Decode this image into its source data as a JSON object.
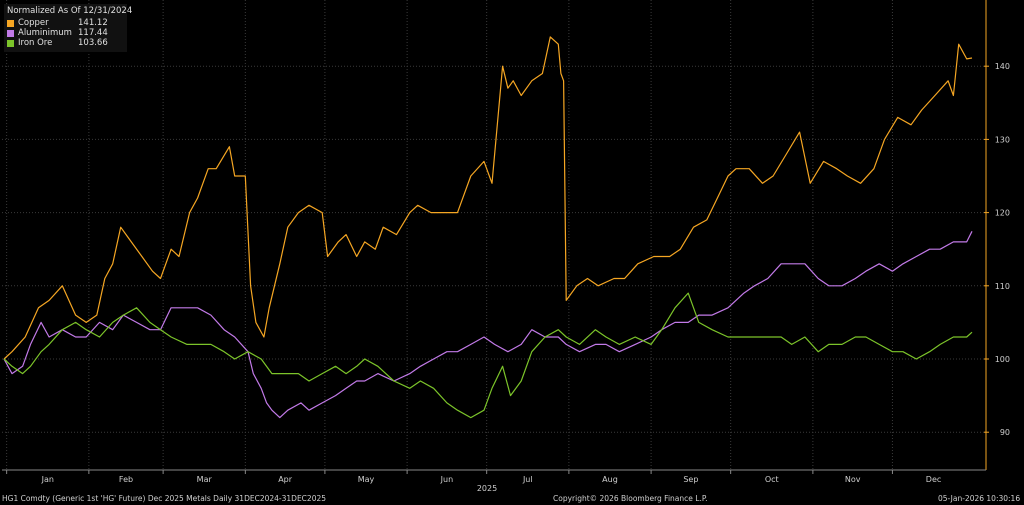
{
  "legend": {
    "title": "Normalized As Of 12/31/2024",
    "items": [
      {
        "name": "Copper",
        "value": "141.12",
        "color": "#f5a623"
      },
      {
        "name": "Aluminimum",
        "value": "117.44",
        "color": "#c27ae8"
      },
      {
        "name": "Iron Ore",
        "value": "103.66",
        "color": "#7cc42a"
      }
    ]
  },
  "footer": {
    "left": "HG1 Comdty (Generic 1st 'HG' Future) Dec 2025 Metals Daily 31DEC2024-31DEC2025",
    "center": "Copyright© 2026 Bloomberg Finance L.P.",
    "right": "05-Jan-2026 10:30:16"
  },
  "chart_data": {
    "type": "line",
    "x_tick_labels": [
      "Jan",
      "Feb",
      "Mar",
      "Apr",
      "May",
      "Jun",
      "Jul",
      "Aug",
      "Sep",
      "Oct",
      "Nov",
      "Dec"
    ],
    "x_year_label": "2025",
    "y_ticks": [
      90,
      100,
      110,
      120,
      130,
      140
    ],
    "ylim": [
      85,
      146
    ],
    "grid": true,
    "legend_position": "top-left",
    "series": [
      {
        "name": "Copper",
        "color": "#f5a623",
        "points": [
          [
            "2024-12-31",
            100
          ],
          [
            "2025-01-03",
            101
          ],
          [
            "2025-01-08",
            103
          ],
          [
            "2025-01-13",
            107
          ],
          [
            "2025-01-17",
            108
          ],
          [
            "2025-01-22",
            110
          ],
          [
            "2025-01-27",
            106
          ],
          [
            "2025-01-31",
            105
          ],
          [
            "2025-02-04",
            106
          ],
          [
            "2025-02-07",
            111
          ],
          [
            "2025-02-10",
            113
          ],
          [
            "2025-02-13",
            118
          ],
          [
            "2025-02-17",
            116
          ],
          [
            "2025-02-21",
            114
          ],
          [
            "2025-02-25",
            112
          ],
          [
            "2025-02-28",
            111
          ],
          [
            "2025-03-04",
            115
          ],
          [
            "2025-03-07",
            114
          ],
          [
            "2025-03-11",
            120
          ],
          [
            "2025-03-14",
            122
          ],
          [
            "2025-03-18",
            126
          ],
          [
            "2025-03-21",
            126
          ],
          [
            "2025-03-26",
            129
          ],
          [
            "2025-03-28",
            125
          ],
          [
            "2025-04-01",
            125
          ],
          [
            "2025-04-03",
            110
          ],
          [
            "2025-04-05",
            105
          ],
          [
            "2025-04-08",
            103
          ],
          [
            "2025-04-10",
            107
          ],
          [
            "2025-04-14",
            113
          ],
          [
            "2025-04-17",
            118
          ],
          [
            "2025-04-21",
            120
          ],
          [
            "2025-04-25",
            121
          ],
          [
            "2025-04-30",
            120
          ],
          [
            "2025-05-02",
            114
          ],
          [
            "2025-05-06",
            116
          ],
          [
            "2025-05-09",
            117
          ],
          [
            "2025-05-13",
            114
          ],
          [
            "2025-05-16",
            116
          ],
          [
            "2025-05-20",
            115
          ],
          [
            "2025-05-23",
            118
          ],
          [
            "2025-05-28",
            117
          ],
          [
            "2025-06-02",
            120
          ],
          [
            "2025-06-05",
            121
          ],
          [
            "2025-06-10",
            120
          ],
          [
            "2025-06-13",
            120
          ],
          [
            "2025-06-17",
            120
          ],
          [
            "2025-06-20",
            120
          ],
          [
            "2025-06-25",
            125
          ],
          [
            "2025-06-30",
            127
          ],
          [
            "2025-07-03",
            124
          ],
          [
            "2025-07-07",
            140
          ],
          [
            "2025-07-09",
            137
          ],
          [
            "2025-07-11",
            138
          ],
          [
            "2025-07-14",
            136
          ],
          [
            "2025-07-18",
            138
          ],
          [
            "2025-07-22",
            139
          ],
          [
            "2025-07-25",
            144
          ],
          [
            "2025-07-28",
            143
          ],
          [
            "2025-07-29",
            139
          ],
          [
            "2025-07-30",
            138
          ],
          [
            "2025-07-31",
            108
          ],
          [
            "2025-08-04",
            110
          ],
          [
            "2025-08-08",
            111
          ],
          [
            "2025-08-12",
            110
          ],
          [
            "2025-08-18",
            111
          ],
          [
            "2025-08-22",
            111
          ],
          [
            "2025-08-27",
            113
          ],
          [
            "2025-09-02",
            114
          ],
          [
            "2025-09-08",
            114
          ],
          [
            "2025-09-12",
            115
          ],
          [
            "2025-09-17",
            118
          ],
          [
            "2025-09-22",
            119
          ],
          [
            "2025-09-26",
            122
          ],
          [
            "2025-09-30",
            125
          ],
          [
            "2025-10-03",
            126
          ],
          [
            "2025-10-08",
            126
          ],
          [
            "2025-10-13",
            124
          ],
          [
            "2025-10-17",
            125
          ],
          [
            "2025-10-22",
            128
          ],
          [
            "2025-10-27",
            131
          ],
          [
            "2025-10-31",
            124
          ],
          [
            "2025-11-05",
            127
          ],
          [
            "2025-11-10",
            126
          ],
          [
            "2025-11-14",
            125
          ],
          [
            "2025-11-19",
            124
          ],
          [
            "2025-11-24",
            126
          ],
          [
            "2025-11-28",
            130
          ],
          [
            "2025-12-03",
            133
          ],
          [
            "2025-12-08",
            132
          ],
          [
            "2025-12-12",
            134
          ],
          [
            "2025-12-17",
            136
          ],
          [
            "2025-12-22",
            138
          ],
          [
            "2025-12-24",
            136
          ],
          [
            "2025-12-26",
            143
          ],
          [
            "2025-12-29",
            141
          ],
          [
            "2025-12-31",
            141.12
          ]
        ]
      },
      {
        "name": "Aluminimum",
        "color": "#c27ae8",
        "points": [
          [
            "2024-12-31",
            100
          ],
          [
            "2025-01-03",
            98
          ],
          [
            "2025-01-07",
            99
          ],
          [
            "2025-01-10",
            102
          ],
          [
            "2025-01-14",
            105
          ],
          [
            "2025-01-17",
            103
          ],
          [
            "2025-01-22",
            104
          ],
          [
            "2025-01-27",
            103
          ],
          [
            "2025-01-31",
            103
          ],
          [
            "2025-02-05",
            105
          ],
          [
            "2025-02-10",
            104
          ],
          [
            "2025-02-14",
            106
          ],
          [
            "2025-02-19",
            105
          ],
          [
            "2025-02-24",
            104
          ],
          [
            "2025-02-28",
            104
          ],
          [
            "2025-03-04",
            107
          ],
          [
            "2025-03-10",
            107
          ],
          [
            "2025-03-14",
            107
          ],
          [
            "2025-03-19",
            106
          ],
          [
            "2025-03-24",
            104
          ],
          [
            "2025-03-28",
            103
          ],
          [
            "2025-04-02",
            101
          ],
          [
            "2025-04-04",
            98
          ],
          [
            "2025-04-07",
            96
          ],
          [
            "2025-04-09",
            94
          ],
          [
            "2025-04-11",
            93
          ],
          [
            "2025-04-14",
            92
          ],
          [
            "2025-04-17",
            93
          ],
          [
            "2025-04-22",
            94
          ],
          [
            "2025-04-25",
            93
          ],
          [
            "2025-04-30",
            94
          ],
          [
            "2025-05-05",
            95
          ],
          [
            "2025-05-09",
            96
          ],
          [
            "2025-05-13",
            97
          ],
          [
            "2025-05-16",
            97
          ],
          [
            "2025-05-21",
            98
          ],
          [
            "2025-05-27",
            97
          ],
          [
            "2025-06-02",
            98
          ],
          [
            "2025-06-06",
            99
          ],
          [
            "2025-06-11",
            100
          ],
          [
            "2025-06-16",
            101
          ],
          [
            "2025-06-20",
            101
          ],
          [
            "2025-06-25",
            102
          ],
          [
            "2025-06-30",
            103
          ],
          [
            "2025-07-04",
            102
          ],
          [
            "2025-07-09",
            101
          ],
          [
            "2025-07-14",
            102
          ],
          [
            "2025-07-18",
            104
          ],
          [
            "2025-07-23",
            103
          ],
          [
            "2025-07-28",
            103
          ],
          [
            "2025-07-31",
            102
          ],
          [
            "2025-08-05",
            101
          ],
          [
            "2025-08-11",
            102
          ],
          [
            "2025-08-15",
            102
          ],
          [
            "2025-08-20",
            101
          ],
          [
            "2025-08-26",
            102
          ],
          [
            "2025-09-01",
            103
          ],
          [
            "2025-09-05",
            104
          ],
          [
            "2025-09-10",
            105
          ],
          [
            "2025-09-15",
            105
          ],
          [
            "2025-09-19",
            106
          ],
          [
            "2025-09-24",
            106
          ],
          [
            "2025-09-30",
            107
          ],
          [
            "2025-10-06",
            109
          ],
          [
            "2025-10-10",
            110
          ],
          [
            "2025-10-15",
            111
          ],
          [
            "2025-10-20",
            113
          ],
          [
            "2025-10-24",
            113
          ],
          [
            "2025-10-29",
            113
          ],
          [
            "2025-11-03",
            111
          ],
          [
            "2025-11-07",
            110
          ],
          [
            "2025-11-12",
            110
          ],
          [
            "2025-11-17",
            111
          ],
          [
            "2025-11-21",
            112
          ],
          [
            "2025-11-26",
            113
          ],
          [
            "2025-12-01",
            112
          ],
          [
            "2025-12-05",
            113
          ],
          [
            "2025-12-10",
            114
          ],
          [
            "2025-12-15",
            115
          ],
          [
            "2025-12-19",
            115
          ],
          [
            "2025-12-24",
            116
          ],
          [
            "2025-12-29",
            116
          ],
          [
            "2025-12-31",
            117.44
          ]
        ]
      },
      {
        "name": "Iron Ore",
        "color": "#7cc42a",
        "points": [
          [
            "2024-12-31",
            100
          ],
          [
            "2025-01-03",
            99
          ],
          [
            "2025-01-07",
            98
          ],
          [
            "2025-01-10",
            99
          ],
          [
            "2025-01-14",
            101
          ],
          [
            "2025-01-17",
            102
          ],
          [
            "2025-01-22",
            104
          ],
          [
            "2025-01-27",
            105
          ],
          [
            "2025-01-31",
            104
          ],
          [
            "2025-02-05",
            103
          ],
          [
            "2025-02-10",
            105
          ],
          [
            "2025-02-14",
            106
          ],
          [
            "2025-02-19",
            107
          ],
          [
            "2025-02-24",
            105
          ],
          [
            "2025-02-28",
            104
          ],
          [
            "2025-03-04",
            103
          ],
          [
            "2025-03-10",
            102
          ],
          [
            "2025-03-14",
            102
          ],
          [
            "2025-03-19",
            102
          ],
          [
            "2025-03-24",
            101
          ],
          [
            "2025-03-28",
            100
          ],
          [
            "2025-04-02",
            101
          ],
          [
            "2025-04-07",
            100
          ],
          [
            "2025-04-11",
            98
          ],
          [
            "2025-04-15",
            98
          ],
          [
            "2025-04-21",
            98
          ],
          [
            "2025-04-25",
            97
          ],
          [
            "2025-04-30",
            98
          ],
          [
            "2025-05-05",
            99
          ],
          [
            "2025-05-09",
            98
          ],
          [
            "2025-05-13",
            99
          ],
          [
            "2025-05-16",
            100
          ],
          [
            "2025-05-21",
            99
          ],
          [
            "2025-05-27",
            97
          ],
          [
            "2025-06-02",
            96
          ],
          [
            "2025-06-06",
            97
          ],
          [
            "2025-06-11",
            96
          ],
          [
            "2025-06-16",
            94
          ],
          [
            "2025-06-20",
            93
          ],
          [
            "2025-06-25",
            92
          ],
          [
            "2025-06-30",
            93
          ],
          [
            "2025-07-03",
            96
          ],
          [
            "2025-07-07",
            99
          ],
          [
            "2025-07-10",
            95
          ],
          [
            "2025-07-14",
            97
          ],
          [
            "2025-07-18",
            101
          ],
          [
            "2025-07-23",
            103
          ],
          [
            "2025-07-28",
            104
          ],
          [
            "2025-07-31",
            103
          ],
          [
            "2025-08-05",
            102
          ],
          [
            "2025-08-11",
            104
          ],
          [
            "2025-08-15",
            103
          ],
          [
            "2025-08-20",
            102
          ],
          [
            "2025-08-26",
            103
          ],
          [
            "2025-09-01",
            102
          ],
          [
            "2025-09-05",
            104
          ],
          [
            "2025-09-10",
            107
          ],
          [
            "2025-09-15",
            109
          ],
          [
            "2025-09-19",
            105
          ],
          [
            "2025-09-24",
            104
          ],
          [
            "2025-09-30",
            103
          ],
          [
            "2025-10-06",
            103
          ],
          [
            "2025-10-10",
            103
          ],
          [
            "2025-10-15",
            103
          ],
          [
            "2025-10-20",
            103
          ],
          [
            "2025-10-24",
            102
          ],
          [
            "2025-10-29",
            103
          ],
          [
            "2025-11-03",
            101
          ],
          [
            "2025-11-07",
            102
          ],
          [
            "2025-11-12",
            102
          ],
          [
            "2025-11-17",
            103
          ],
          [
            "2025-11-21",
            103
          ],
          [
            "2025-11-26",
            102
          ],
          [
            "2025-12-01",
            101
          ],
          [
            "2025-12-05",
            101
          ],
          [
            "2025-12-10",
            100
          ],
          [
            "2025-12-15",
            101
          ],
          [
            "2025-12-19",
            102
          ],
          [
            "2025-12-24",
            103
          ],
          [
            "2025-12-29",
            103
          ],
          [
            "2025-12-31",
            103.66
          ]
        ]
      }
    ]
  }
}
